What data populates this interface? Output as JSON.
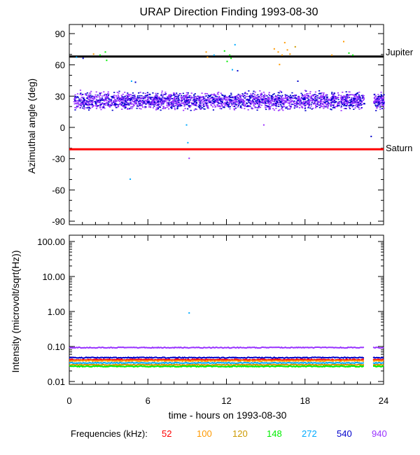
{
  "chart_data": [
    {
      "type": "scatter",
      "title": "URAP Direction Finding  1993-08-30",
      "ylabel": "Azimuthal angle (deg)",
      "xlim": [
        0,
        24
      ],
      "ylim": [
        -90,
        90
      ],
      "yticks": [
        90,
        60,
        30,
        0,
        -30,
        -60,
        -90
      ],
      "reference_lines": [
        {
          "label": "Jupiter",
          "y": 68,
          "color": "#000000"
        },
        {
          "label": "Saturn",
          "y": -21,
          "color": "#ff0000"
        }
      ],
      "band": {
        "x_start": 0.3,
        "x_end": 22.5,
        "x_start2": 23.2,
        "x_end2": 24,
        "y_min": 15,
        "y_max": 37,
        "colors": [
          "#9933ff",
          "#0000cc"
        ]
      },
      "points": [
        {
          "x": 0.5,
          "y": 68,
          "c": "#00aaff"
        },
        {
          "x": 1.0,
          "y": 67,
          "c": "#0000cc"
        },
        {
          "x": 1.8,
          "y": 71,
          "c": "#ff9900"
        },
        {
          "x": 2.3,
          "y": 70,
          "c": "#00ee00"
        },
        {
          "x": 2.7,
          "y": 73,
          "c": "#00ee00"
        },
        {
          "x": 2.8,
          "y": 65,
          "c": "#00ee00"
        },
        {
          "x": 4.7,
          "y": 45,
          "c": "#00aaff"
        },
        {
          "x": 5.0,
          "y": 44,
          "c": "#0000cc"
        },
        {
          "x": 4.6,
          "y": -49,
          "c": "#00aaff"
        },
        {
          "x": 8.9,
          "y": 3,
          "c": "#00aaff"
        },
        {
          "x": 9.0,
          "y": -14,
          "c": "#00aaff"
        },
        {
          "x": 9.1,
          "y": -29,
          "c": "#9933ff"
        },
        {
          "x": 10.4,
          "y": 73,
          "c": "#ff9900"
        },
        {
          "x": 10.5,
          "y": 68,
          "c": "#ff9900"
        },
        {
          "x": 11.0,
          "y": 70,
          "c": "#00aaff"
        },
        {
          "x": 11.8,
          "y": 74,
          "c": "#00ee00"
        },
        {
          "x": 12.0,
          "y": 64,
          "c": "#00ee00"
        },
        {
          "x": 12.2,
          "y": 70,
          "c": "#00ee00"
        },
        {
          "x": 12.3,
          "y": 67,
          "c": "#00ee00"
        },
        {
          "x": 12.4,
          "y": 56,
          "c": "#00aaff"
        },
        {
          "x": 12.6,
          "y": 80,
          "c": "#00aaff"
        },
        {
          "x": 12.8,
          "y": 55,
          "c": "#0000cc"
        },
        {
          "x": 14.8,
          "y": 3,
          "c": "#9933ff"
        },
        {
          "x": 15.6,
          "y": 76,
          "c": "#ff9900"
        },
        {
          "x": 15.9,
          "y": 73,
          "c": "#ff9900"
        },
        {
          "x": 16.0,
          "y": 61,
          "c": "#ff9900"
        },
        {
          "x": 16.2,
          "y": 70,
          "c": "#ff9900"
        },
        {
          "x": 16.4,
          "y": 82,
          "c": "#ff9900"
        },
        {
          "x": 16.6,
          "y": 75,
          "c": "#ff9900"
        },
        {
          "x": 16.8,
          "y": 71,
          "c": "#ff9900"
        },
        {
          "x": 17.2,
          "y": 78,
          "c": "#cc9900"
        },
        {
          "x": 17.4,
          "y": 45,
          "c": "#0000cc"
        },
        {
          "x": 20.0,
          "y": 70,
          "c": "#ff9900"
        },
        {
          "x": 20.9,
          "y": 83,
          "c": "#ff9900"
        },
        {
          "x": 21.3,
          "y": 72,
          "c": "#00ee00"
        },
        {
          "x": 21.6,
          "y": 70,
          "c": "#00ee00"
        },
        {
          "x": 23.0,
          "y": -8,
          "c": "#0000cc"
        }
      ]
    },
    {
      "type": "line",
      "ylabel": "Intensity (microvolt/sqrt(Hz))",
      "xlabel": "time - hours on 1993-08-30",
      "xlim": [
        0,
        24
      ],
      "ylim_log": [
        0.01,
        100
      ],
      "xticks": [
        0,
        6,
        12,
        18,
        24
      ],
      "yticks": [
        "100.00",
        "10.00",
        "1.00",
        "0.10",
        "0.01"
      ],
      "gap": [
        22.5,
        23.2
      ],
      "series": [
        {
          "freq": "940",
          "color": "#9933ff",
          "value": 0.093
        },
        {
          "freq": "540",
          "color": "#0000cc",
          "value": 0.048
        },
        {
          "freq": "52",
          "color": "#ff0000",
          "value": 0.042
        },
        {
          "freq": "100",
          "color": "#ff9900",
          "value": 0.039
        },
        {
          "freq": "272",
          "color": "#00aaff",
          "value": 0.034
        },
        {
          "freq": "120",
          "color": "#cc9900",
          "value": 0.03
        },
        {
          "freq": "148",
          "color": "#00ee00",
          "value": 0.027
        }
      ],
      "isolated_points": [
        {
          "x": 9.1,
          "y": 0.95,
          "c": "#00aaff"
        }
      ]
    }
  ],
  "legend": {
    "label": "Frequencies (kHz):",
    "items": [
      {
        "text": "52",
        "color": "#ff0000"
      },
      {
        "text": "100",
        "color": "#ff9900"
      },
      {
        "text": "120",
        "color": "#cc9900"
      },
      {
        "text": "148",
        "color": "#00ee00"
      },
      {
        "text": "272",
        "color": "#00aaff"
      },
      {
        "text": "540",
        "color": "#0000cc"
      },
      {
        "text": "940",
        "color": "#9933ff"
      }
    ]
  }
}
